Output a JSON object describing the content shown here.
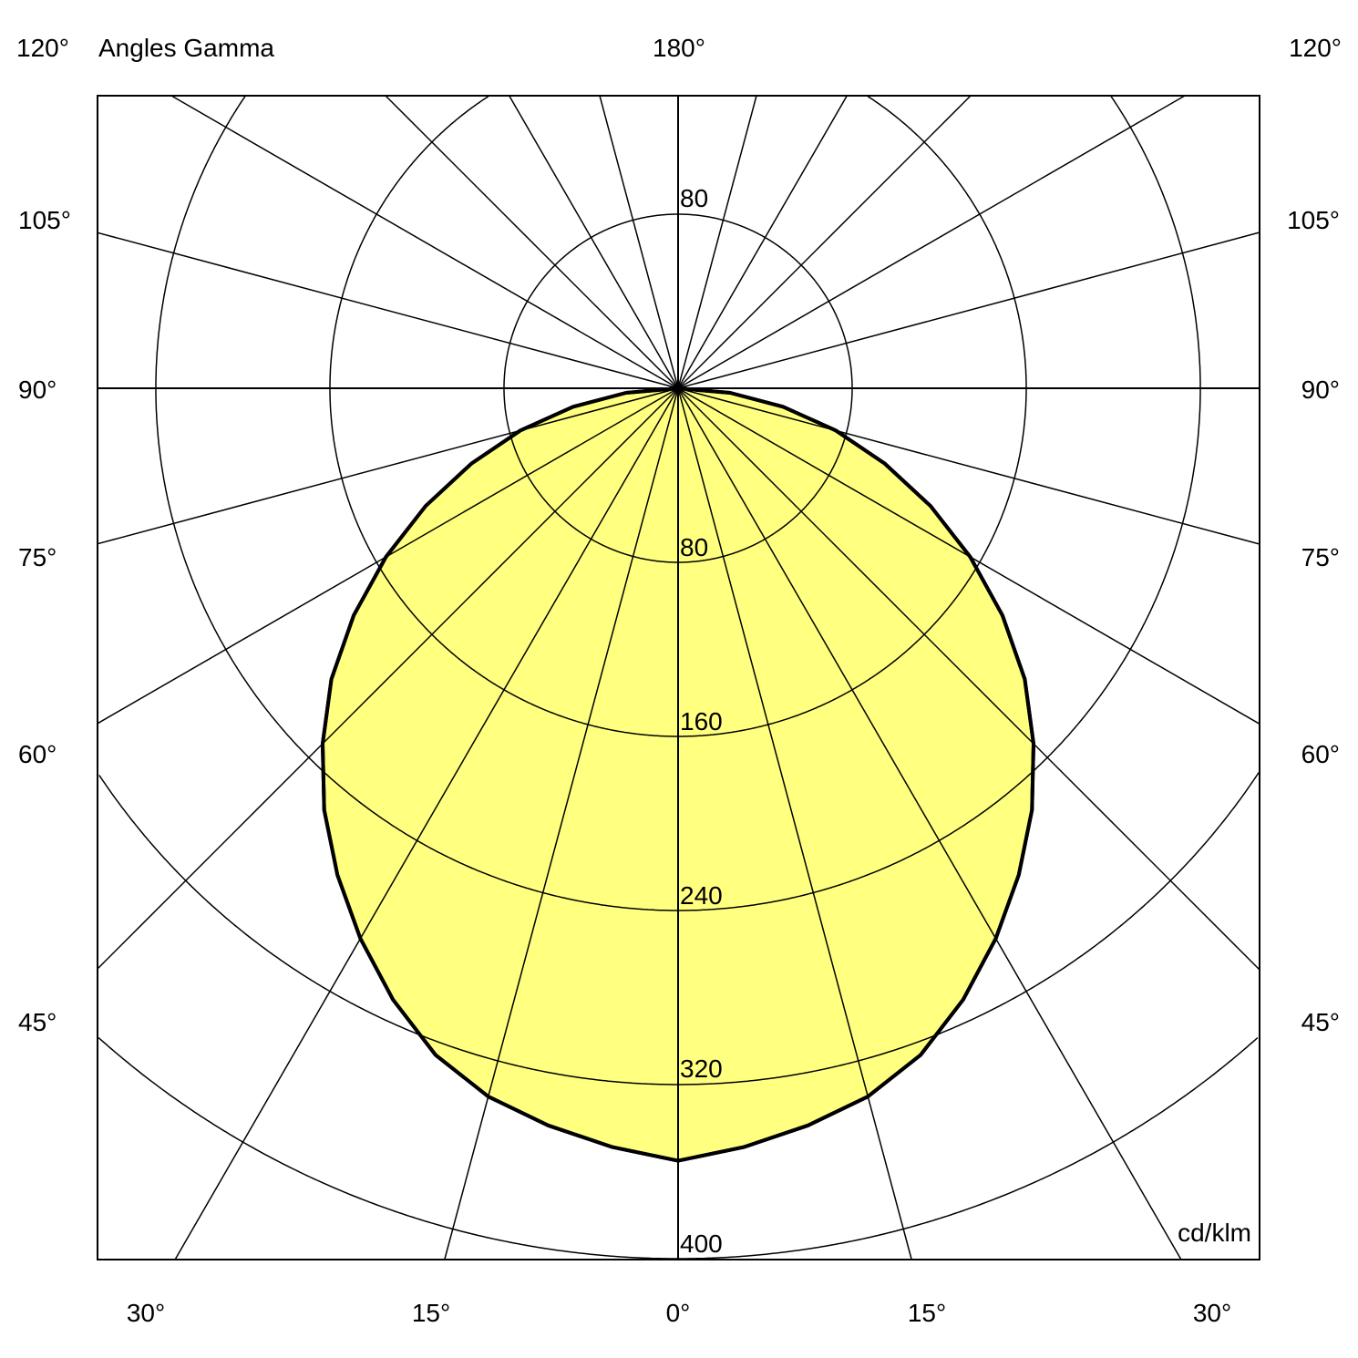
{
  "chart_data": {
    "type": "polar",
    "title": "Angles Gamma",
    "unit": "cd/klm",
    "top_center_label": "180°",
    "corner_labels": [
      "120°",
      "120°"
    ],
    "side_angle_labels": [
      "105°",
      "90°",
      "75°",
      "60°",
      "45°"
    ],
    "bottom_angle_labels": [
      "30°",
      "15°",
      "0°",
      "15°",
      "30°"
    ],
    "ring_values": [
      80,
      160,
      240,
      320,
      400
    ],
    "ring_labels": [
      "80",
      "80",
      "160",
      "240",
      "320",
      "400"
    ],
    "radial_step_deg": 15,
    "fill_color": "#ffff80",
    "line_color": "#000000",
    "series": [
      {
        "gamma_deg": [
          0,
          5,
          10,
          15,
          20,
          25,
          30,
          35,
          40,
          45,
          50,
          55,
          60,
          65,
          70,
          75,
          80,
          85,
          90
        ],
        "values": [
          355,
          350,
          344,
          337,
          326,
          310,
          292,
          273,
          253,
          231,
          208,
          182,
          155,
          128,
          101,
          75,
          49,
          24,
          0
        ],
        "symmetric": true
      }
    ]
  }
}
